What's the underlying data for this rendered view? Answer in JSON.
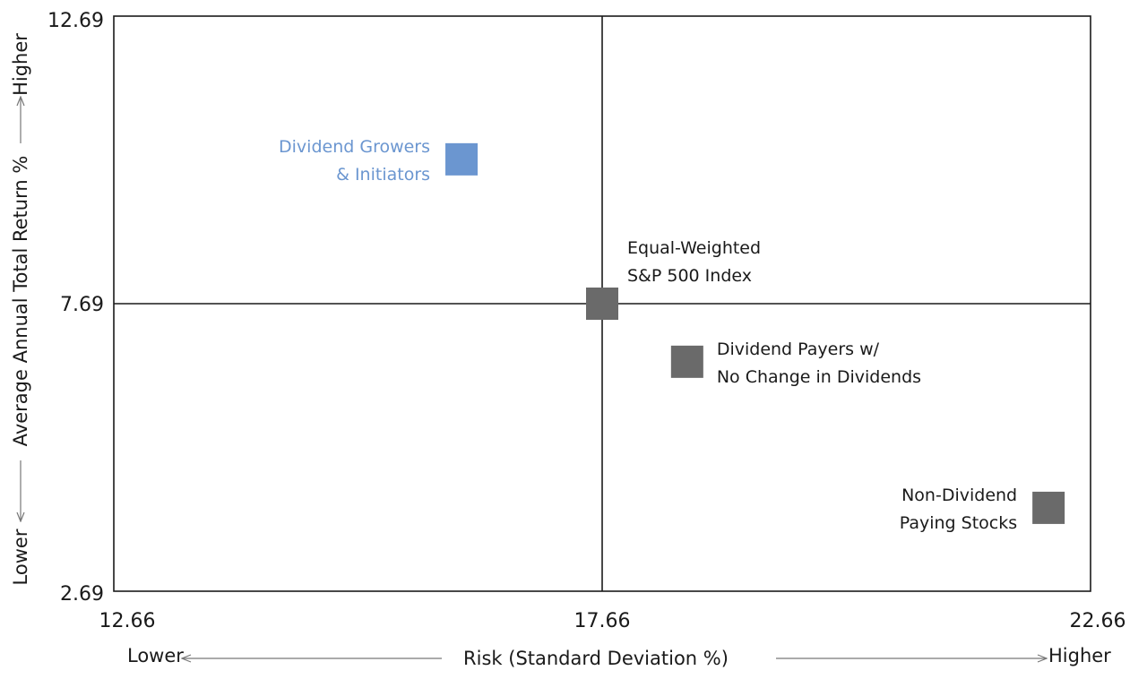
{
  "chart_data": {
    "type": "scatter",
    "title": "",
    "xlabel": "Risk (Standard Deviation %)",
    "ylabel": "Average Annual Total Return %",
    "xlim": [
      12.66,
      22.66
    ],
    "ylim": [
      2.69,
      12.69
    ],
    "x_ticks": [
      "12.66",
      "17.66",
      "22.66"
    ],
    "y_ticks": [
      "2.69",
      "7.69",
      "12.69"
    ],
    "x_axis_low": "Lower",
    "x_axis_high": "Higher",
    "y_axis_low": "Lower",
    "y_axis_high": "Higher",
    "reference_lines": {
      "x": 17.66,
      "y": 7.69
    },
    "grid": false,
    "legend": "none",
    "colors": {
      "highlight": "#6b96d0",
      "default": "#6a6a6a",
      "axis": "#1a1a1a",
      "text": "#1a1a1a",
      "arrow": "#777777"
    },
    "points": [
      {
        "label": [
          "Dividend Growers",
          "& Initiators"
        ],
        "x": 16.22,
        "y": 10.2,
        "color": "#6b96d0",
        "label_side": "left"
      },
      {
        "label": [
          "Equal-Weighted",
          "S&P 500 Index"
        ],
        "x": 17.66,
        "y": 7.69,
        "color": "#6a6a6a",
        "label_side": "above-right"
      },
      {
        "label": [
          "Dividend Payers w/",
          "No Change in Dividends"
        ],
        "x": 18.53,
        "y": 6.68,
        "color": "#6a6a6a",
        "label_side": "right"
      },
      {
        "label": [
          "Non-Dividend",
          "Paying Stocks"
        ],
        "x": 22.23,
        "y": 4.14,
        "color": "#6a6a6a",
        "label_side": "left"
      }
    ]
  }
}
